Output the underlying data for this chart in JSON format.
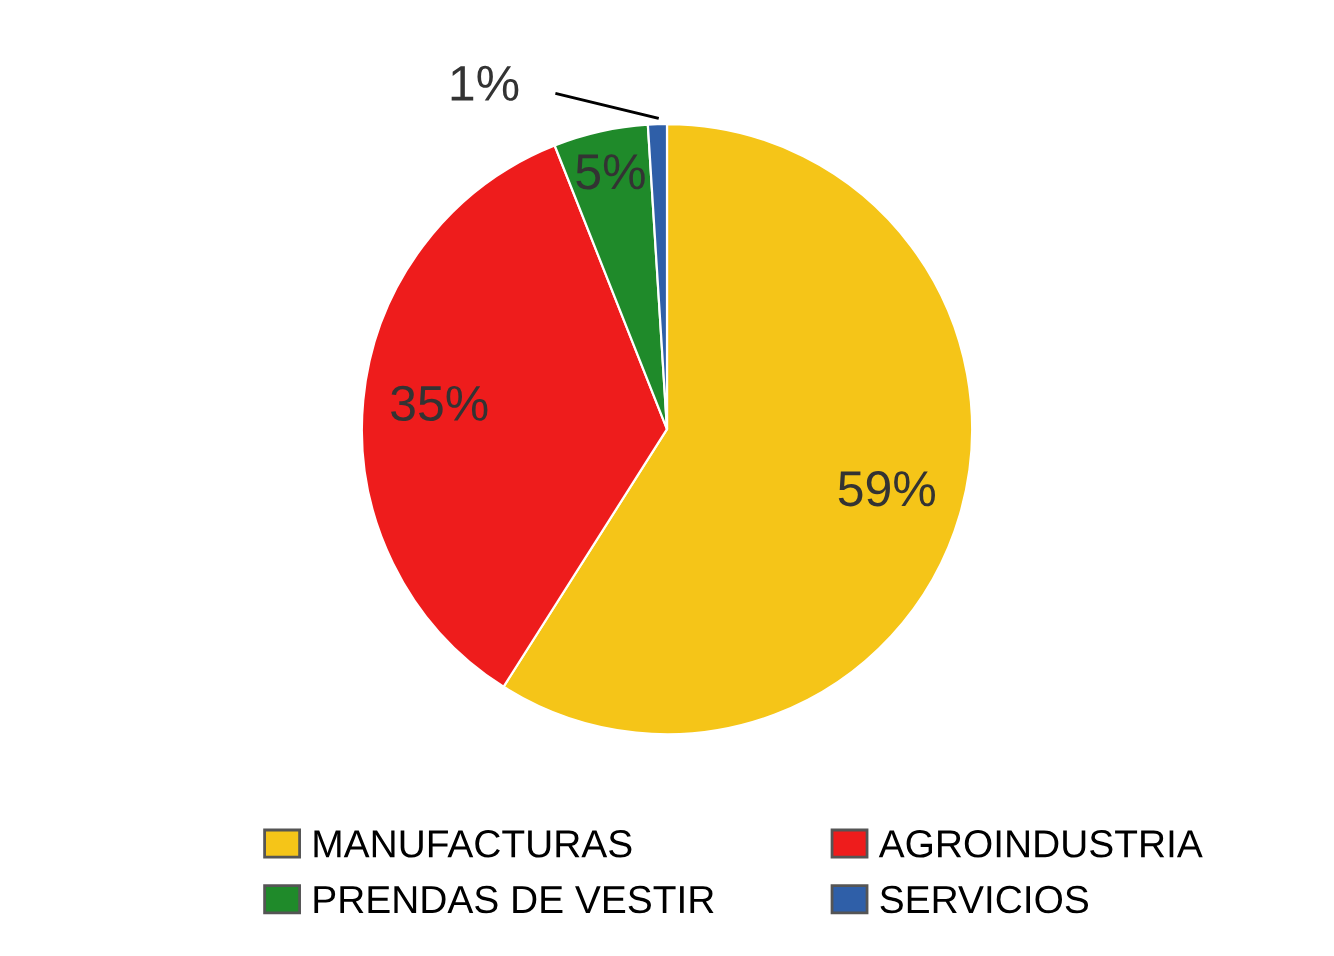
{
  "chart_data": {
    "type": "pie",
    "categories": [
      "MANUFACTURAS",
      "AGROINDUSTRIA",
      "PRENDAS DE VESTIR",
      "SERVICIOS"
    ],
    "values": [
      59,
      35,
      5,
      1
    ],
    "colors": [
      "#f5c518",
      "#ee1c1c",
      "#1f8a2a",
      "#2f5fa8"
    ],
    "value_labels": [
      "59%",
      "35%",
      "5%",
      "1%"
    ],
    "legend": "bottom"
  }
}
